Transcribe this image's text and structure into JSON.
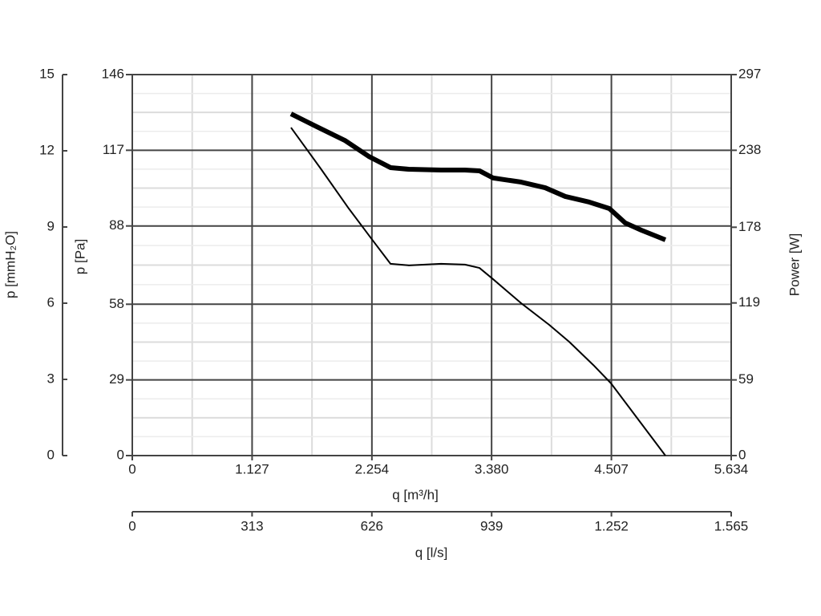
{
  "chart_data": {
    "type": "line",
    "xlabel": "q [m³/h]",
    "xlim": [
      0,
      5634
    ],
    "xticks": [
      0,
      {
        "value": 1127,
        "label": "1.127"
      },
      {
        "value": 2254,
        "label": "2.254"
      },
      {
        "value": 3380,
        "label": "3.380"
      },
      {
        "value": 4507,
        "label": "4.507"
      },
      {
        "value": 5634,
        "label": "5.634"
      }
    ],
    "x2label": "q [l/s]",
    "x2lim": [
      0,
      1565
    ],
    "x2ticks": [
      0,
      313,
      626,
      939,
      {
        "value": 1252,
        "label": "1.252"
      },
      {
        "value": 1565,
        "label": "1.565"
      }
    ],
    "ylabel": "p [Pa]",
    "ylim": [
      0,
      146
    ],
    "yticks": [
      0,
      29,
      58,
      88,
      117,
      146
    ],
    "y2label": "Power [W]",
    "y2lim": [
      0,
      297
    ],
    "y2ticks": [
      0,
      59,
      119,
      178,
      238,
      297
    ],
    "y3label": "p [mmH₂O]",
    "y3lim": [
      0,
      15
    ],
    "y3ticks": [
      0,
      3,
      6,
      9,
      12,
      15
    ],
    "grid": true,
    "minor_grid": true,
    "series": [
      {
        "color": "#000000",
        "line_width": 2,
        "x": [
          1493,
          1772,
          2036,
          2263,
          2429,
          2602,
          2904,
          3130,
          3266,
          3394,
          3658,
          3922,
          4110,
          4337,
          4503,
          4714,
          5015
        ],
        "values": [
          125.7,
          110.0,
          94.7,
          82.4,
          73.5,
          72.9,
          73.5,
          73.2,
          71.9,
          67.6,
          58.4,
          50.1,
          43.6,
          34.7,
          27.7,
          16.3,
          0
        ]
      },
      {
        "color": "#000000",
        "line_width": 6,
        "axis": "y2",
        "x": [
          1493,
          1735,
          1999,
          2225,
          2429,
          2602,
          2904,
          3130,
          3266,
          3394,
          3658,
          3884,
          4073,
          4299,
          4488,
          4638,
          4789,
          5015
        ],
        "values": [
          266.4,
          256.4,
          245.7,
          233.2,
          224.5,
          223.2,
          222.6,
          222.6,
          222.0,
          216.4,
          213.2,
          208.8,
          202.0,
          197.6,
          192.6,
          181.3,
          175.7,
          168.2
        ]
      }
    ]
  }
}
